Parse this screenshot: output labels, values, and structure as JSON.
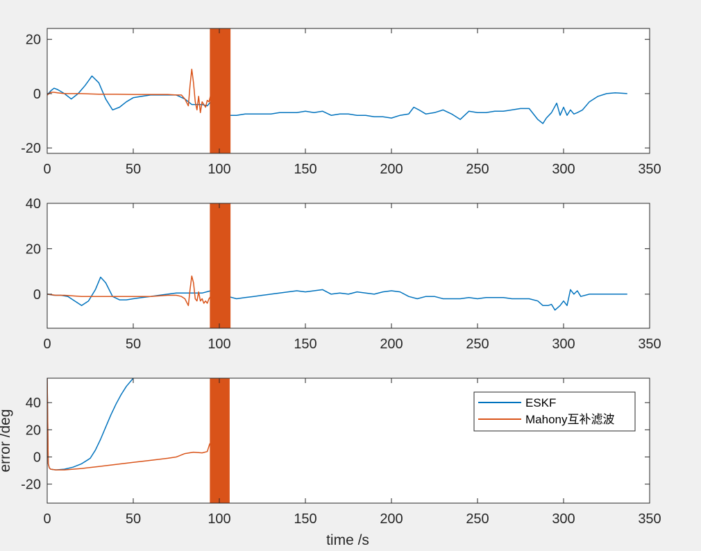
{
  "colors": {
    "eskf": "#0072BD",
    "mahony": "#D95319",
    "axes": "#262626",
    "background": "#f0f0f0",
    "plot_bg": "#ffffff"
  },
  "chart_data": [
    {
      "type": "line",
      "xlim": [
        0,
        350
      ],
      "ylim": [
        -22,
        24
      ],
      "xticks": [
        "0",
        "50",
        "100",
        "150",
        "200",
        "250",
        "300",
        "350"
      ],
      "yticks": [
        "-20",
        "0",
        "20"
      ],
      "ytick_values": [
        -20,
        0,
        20
      ],
      "xlabel": "",
      "ylabel": "",
      "series": [
        {
          "key": "eskf",
          "x": [
            0,
            2,
            4,
            6,
            10,
            14,
            18,
            22,
            26,
            30,
            34,
            38,
            42,
            46,
            50,
            55,
            60,
            65,
            70,
            75,
            80,
            84,
            87,
            90,
            93,
            95,
            100,
            105,
            110,
            115,
            120,
            125,
            130,
            135,
            140,
            145,
            150,
            155,
            160,
            165,
            170,
            175,
            180,
            185,
            190,
            195,
            200,
            205,
            210,
            213,
            216,
            220,
            225,
            230,
            235,
            240,
            245,
            250,
            255,
            260,
            265,
            270,
            275,
            280,
            285,
            288,
            290,
            293,
            296,
            298,
            300,
            302,
            304,
            306,
            308,
            311,
            315,
            320,
            325,
            330,
            337
          ],
          "y": [
            -0.5,
            1,
            2,
            1.5,
            0,
            -2,
            0,
            3,
            6.5,
            4,
            -2,
            -6,
            -5,
            -3,
            -1.5,
            -1,
            -0.5,
            -0.5,
            -0.5,
            -0.5,
            -2,
            -4,
            -4,
            -4,
            -4.5,
            -3,
            -7,
            -8,
            -8,
            -7.5,
            -7.5,
            -7.5,
            -7.5,
            -7,
            -7,
            -7,
            -6.5,
            -7,
            -6.5,
            -8,
            -7.5,
            -7.5,
            -8,
            -8,
            -8.5,
            -8.5,
            -9,
            -8,
            -7.5,
            -5,
            -6,
            -7.5,
            -7,
            -6,
            -7.5,
            -9.5,
            -6.5,
            -7,
            -7,
            -6.5,
            -6.5,
            -6,
            -5.5,
            -5.5,
            -9.5,
            -11,
            -9,
            -7,
            -3.5,
            -8,
            -5,
            -8,
            -6,
            -7.5,
            -7,
            -6,
            -3,
            -1,
            0,
            0.3,
            0
          ]
        },
        {
          "key": "mahony",
          "x": [
            0,
            2,
            4,
            6,
            10,
            20,
            30,
            40,
            50,
            60,
            70,
            75,
            78,
            80,
            82,
            83,
            84,
            85,
            86,
            87,
            88,
            89,
            90,
            91,
            92,
            93,
            94,
            95
          ],
          "y": [
            -0.5,
            0.5,
            0.5,
            0.3,
            0,
            0,
            -0.2,
            -0.2,
            -0.3,
            -0.3,
            -0.3,
            -0.5,
            -0.5,
            -2,
            -4.5,
            3,
            9,
            4,
            -3,
            -6,
            -1,
            -7,
            -3,
            -4,
            -5,
            -2.5,
            -3,
            -0.5
          ]
        }
      ],
      "noise_band": {
        "series": "mahony",
        "x_from": 94.5,
        "x_to": 106.5
      }
    },
    {
      "type": "line",
      "xlim": [
        0,
        350
      ],
      "ylim": [
        -15,
        40
      ],
      "xticks": [
        "0",
        "50",
        "100",
        "150",
        "200",
        "250",
        "300",
        "350"
      ],
      "yticks": [
        "0",
        "20",
        "40"
      ],
      "ytick_values": [
        0,
        20,
        40
      ],
      "xlabel": "",
      "ylabel": "",
      "series": [
        {
          "key": "eskf",
          "x": [
            0,
            4,
            8,
            12,
            16,
            20,
            24,
            28,
            31,
            34,
            38,
            42,
            46,
            50,
            55,
            60,
            65,
            70,
            75,
            80,
            85,
            90,
            95,
            100,
            105,
            110,
            115,
            120,
            125,
            130,
            135,
            140,
            145,
            150,
            155,
            160,
            165,
            170,
            175,
            180,
            185,
            190,
            195,
            200,
            205,
            210,
            215,
            220,
            225,
            230,
            235,
            240,
            245,
            250,
            255,
            260,
            265,
            270,
            275,
            280,
            285,
            288,
            291,
            293,
            295,
            298,
            300,
            302,
            304,
            306,
            308,
            310,
            315,
            320,
            330,
            337
          ],
          "y": [
            0,
            -0.5,
            -0.5,
            -1,
            -3,
            -5,
            -3,
            2,
            7.5,
            5,
            -1,
            -2.5,
            -2.5,
            -2,
            -1.5,
            -1,
            -0.5,
            0,
            0.5,
            0.5,
            0.5,
            0.5,
            1.5,
            0,
            -1,
            -2,
            -1.5,
            -1,
            -0.5,
            0,
            0.5,
            1,
            1.5,
            1,
            1.5,
            2,
            0,
            0.5,
            0,
            1,
            0.5,
            0,
            1,
            1.5,
            1,
            -1,
            -2,
            -1,
            -1,
            -2,
            -2,
            -2,
            -1.5,
            -2,
            -1.5,
            -1.5,
            -1.5,
            -2,
            -2,
            -2,
            -3,
            -5,
            -5,
            -4.5,
            -7,
            -5,
            -3,
            -5,
            2,
            0,
            1.5,
            -1,
            0,
            0,
            0,
            0
          ]
        },
        {
          "key": "mahony",
          "x": [
            0,
            5,
            10,
            20,
            30,
            40,
            50,
            60,
            70,
            75,
            78,
            80,
            82,
            83,
            84,
            85,
            86,
            87,
            88,
            89,
            90,
            91,
            92,
            93,
            94,
            95
          ],
          "y": [
            0,
            -0.5,
            -0.5,
            -1,
            -1,
            -1,
            -1,
            -1,
            -0.5,
            -0.5,
            -1,
            -2,
            -5,
            2,
            8,
            5,
            -2,
            -3,
            1,
            -3,
            -2,
            -4,
            -3,
            -4,
            -2,
            -1
          ]
        }
      ],
      "noise_band": {
        "series": "mahony",
        "x_from": 94.5,
        "x_to": 106.5
      }
    },
    {
      "type": "line",
      "xlim": [
        0,
        350
      ],
      "ylim": [
        -34,
        58
      ],
      "xticks": [
        "0",
        "50",
        "100",
        "150",
        "200",
        "250",
        "300",
        "350"
      ],
      "yticks": [
        "-20",
        "0",
        "20",
        "40"
      ],
      "ytick_values": [
        -20,
        0,
        20,
        40
      ],
      "xlabel": "time /s",
      "ylabel": "error /deg",
      "legend": {
        "location": "top-right",
        "entries": [
          "ESKF",
          "Mahony互补滤波"
        ]
      },
      "series": [
        {
          "key": "eskf",
          "x": [
            0,
            0.6,
            1.2,
            2,
            5,
            10,
            15,
            20,
            25,
            28,
            31,
            34,
            37,
            40,
            43,
            46,
            50
          ],
          "y": [
            58,
            -5,
            -8,
            -9,
            -9.5,
            -9,
            -7.5,
            -5,
            -1,
            5,
            13,
            22,
            31,
            39,
            46,
            52,
            58
          ]
        },
        {
          "key": "mahony",
          "x": [
            0,
            0.6,
            1.2,
            2,
            5,
            10,
            20,
            30,
            40,
            50,
            60,
            70,
            75,
            80,
            85,
            90,
            93,
            94.5
          ],
          "y": [
            58,
            -5,
            -8,
            -9,
            -9.5,
            -9.5,
            -8.5,
            -7,
            -5.5,
            -4,
            -2.5,
            -1,
            0,
            2.5,
            3.5,
            3,
            4,
            10
          ]
        }
      ],
      "noise_band": {
        "series": "mahony",
        "x_from": 94.5,
        "x_to": 106
      }
    }
  ]
}
